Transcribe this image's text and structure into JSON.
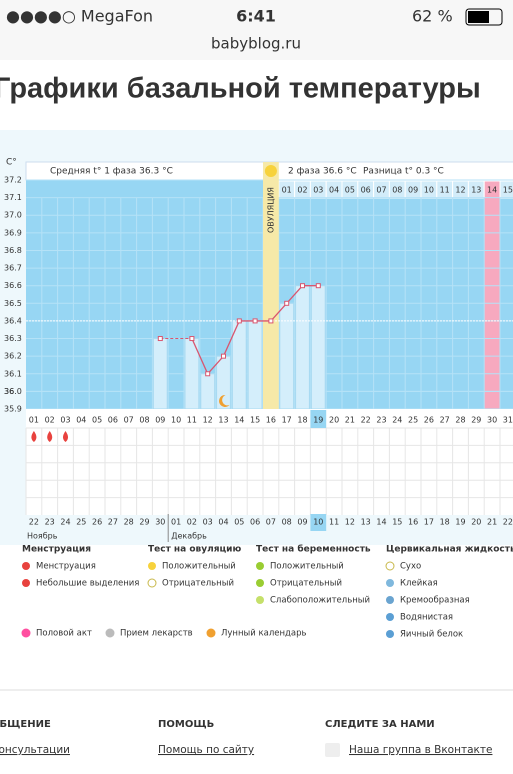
{
  "status_bar": {
    "carrier": "●●●●○ MegaFon",
    "time": "6:41",
    "battery": "62 %"
  },
  "url": "babyblog.ru",
  "page_title": "Графики базальной температуры",
  "chart_data": {
    "type": "line",
    "y_unit": "C°",
    "summary": {
      "phase1": "Средняя t° 1 фаза 36.3 °C",
      "phase2": "2 фаза 36.6 °C",
      "difference": "Разница t° 0.3 °C"
    },
    "ovulation": {
      "label": "ОВУЛЯЦИЯ",
      "day": "16"
    },
    "categories": [
      "01",
      "02",
      "03",
      "04",
      "05",
      "06",
      "07",
      "08",
      "09",
      "10",
      "11",
      "12",
      "13",
      "14",
      "15",
      "16",
      "17",
      "18",
      "19",
      "20",
      "21",
      "22",
      "23",
      "24",
      "25",
      "26",
      "27",
      "28",
      "29",
      "30",
      "31"
    ],
    "values": [
      null,
      null,
      null,
      null,
      null,
      null,
      null,
      null,
      36.3,
      null,
      36.3,
      36.1,
      36.2,
      36.4,
      36.4,
      36.4,
      36.5,
      36.6,
      36.6,
      null,
      null,
      null,
      null,
      null,
      null,
      null,
      null,
      null,
      null,
      null,
      null
    ],
    "color": "#d9566f",
    "coverline": 36.4,
    "ylim": [
      35.9,
      37.2
    ],
    "yticks": [
      35.9,
      36.0,
      {
        "value": 36,
        "label": "36.0"
      },
      36.1,
      36.2,
      36.3,
      36.4,
      36.5,
      36.6,
      36.7,
      36.8,
      36.9,
      {
        "value": 37,
        "label": "37.0"
      },
      37.1,
      37.2
    ],
    "post_ovulation_days": [
      "01",
      "02",
      "03",
      "04",
      "05",
      "06",
      "07",
      "08",
      "09",
      "10",
      "11",
      "12",
      "13",
      "14",
      "15"
    ],
    "highlighted_post_day": "14",
    "selected_day": "19",
    "moon_day": "13",
    "menstruation_days": [
      "01",
      "02",
      "03"
    ],
    "calendar": [
      {
        "date": "22",
        "red": true
      },
      {
        "date": "23",
        "red": true
      },
      {
        "date": "24",
        "red": true
      },
      {
        "date": "25",
        "red": false
      },
      {
        "date": "26",
        "red": false
      },
      {
        "date": "27",
        "red": false
      },
      {
        "date": "28",
        "red": false
      },
      {
        "date": "29",
        "red": true
      },
      {
        "date": "30",
        "red": true
      },
      {
        "date": "01",
        "red": false
      },
      {
        "date": "02",
        "red": false
      },
      {
        "date": "03",
        "red": false
      },
      {
        "date": "04",
        "red": false
      },
      {
        "date": "05",
        "red": false
      },
      {
        "date": "06",
        "red": true
      },
      {
        "date": "07",
        "red": true
      },
      {
        "date": "08",
        "red": false
      },
      {
        "date": "09",
        "red": false
      },
      {
        "date": "10",
        "red": false
      },
      {
        "date": "11",
        "red": false
      },
      {
        "date": "12",
        "red": false
      },
      {
        "date": "13",
        "red": true
      },
      {
        "date": "14",
        "red": true
      },
      {
        "date": "15",
        "red": false
      },
      {
        "date": "16",
        "red": false
      },
      {
        "date": "17",
        "red": false
      },
      {
        "date": "18",
        "red": false
      },
      {
        "date": "19",
        "red": false
      },
      {
        "date": "20",
        "red": true
      },
      {
        "date": "21",
        "red": true
      },
      {
        "date": "22",
        "red": false
      }
    ],
    "months": [
      "Ноябрь",
      "Декабрь"
    ]
  },
  "legend": {
    "groups": [
      {
        "title": "Менструация",
        "items": [
          "Менструация",
          "Небольшие выделения"
        ]
      },
      {
        "title": "Тест на овуляцию",
        "items": [
          "Положительный",
          "Отрицательный"
        ]
      },
      {
        "title": "Тест на беременность",
        "items": [
          "Положительный",
          "Отрицательный",
          "Слабоположительный"
        ]
      },
      {
        "title": "Цервикальная жидкость",
        "items": [
          "Сухо",
          "Клейкая",
          "Кремообразная",
          "Водянистая",
          "Яичный белок"
        ]
      }
    ],
    "extra": [
      "Половой акт",
      "Прием лекарств",
      "Лунный календарь"
    ]
  },
  "footer": {
    "columns": [
      {
        "title": "ОБЩЕНИЕ",
        "link": "Консультации"
      },
      {
        "title": "ПОМОЩЬ",
        "link": "Помощь по сайту"
      },
      {
        "title": "СЛЕДИТЕ ЗА НАМИ",
        "link": "Наша группа в Вконтакте"
      }
    ]
  }
}
